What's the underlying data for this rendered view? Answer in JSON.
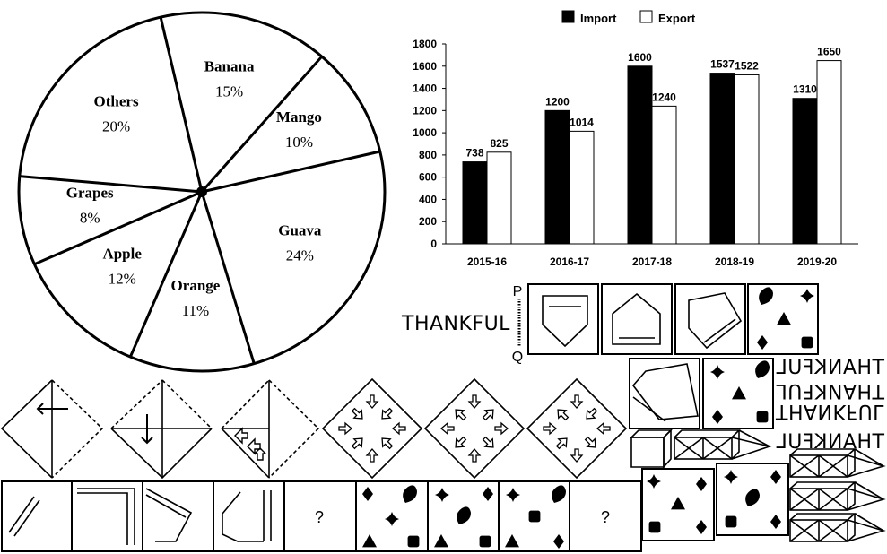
{
  "chart_data": [
    {
      "type": "pie",
      "slices": [
        {
          "label": "Banana",
          "value": 15,
          "display": "15%"
        },
        {
          "label": "Mango",
          "value": 10,
          "display": "10%"
        },
        {
          "label": "Guava",
          "value": 24,
          "display": "24%"
        },
        {
          "label": "Orange",
          "value": 11,
          "display": "11%"
        },
        {
          "label": "Apple",
          "value": 12,
          "display": "12%"
        },
        {
          "label": "Grapes",
          "value": 8,
          "display": "8%"
        },
        {
          "label": "Others",
          "value": 20,
          "display": "20%"
        }
      ]
    },
    {
      "type": "bar",
      "categories": [
        "2015-16",
        "2016-17",
        "2017-18",
        "2018-19",
        "2019-20"
      ],
      "series": [
        {
          "name": "Import",
          "values": [
            738,
            1200,
            1600,
            1537,
            1310
          ],
          "color": "#000000"
        },
        {
          "name": "Export",
          "values": [
            825,
            1014,
            1240,
            1522,
            1650
          ],
          "color": "#ffffff"
        }
      ],
      "ylim": [
        0,
        1800
      ],
      "yticks": [
        0,
        200,
        400,
        600,
        800,
        1000,
        1200,
        1400,
        1600,
        1800
      ],
      "legend": "top"
    }
  ],
  "puzzles": {
    "word": "THANKFUL",
    "mirror_p": "P",
    "mirror_q": "Q",
    "question_mark": "?"
  }
}
